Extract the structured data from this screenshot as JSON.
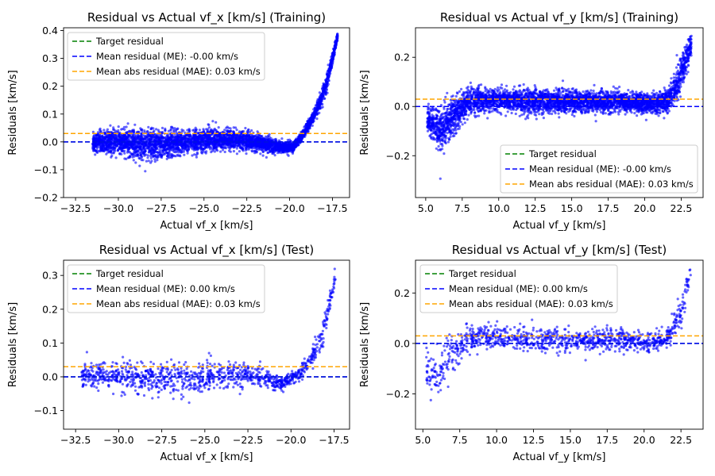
{
  "chart_data": [
    {
      "type": "scatter",
      "title": "Residual vs Actual vf_x [km/s] (Training)",
      "xlabel": "Actual vf_x [km/s]",
      "ylabel": "Residuals [km/s]",
      "xlim": [
        -33.2,
        -16.5
      ],
      "ylim": [
        -0.2,
        0.41
      ],
      "xticks": [
        -32.5,
        -30.0,
        -27.5,
        -25.0,
        -22.5,
        -20.0,
        -17.5
      ],
      "yticks": [
        -0.2,
        -0.1,
        0.0,
        0.1,
        0.2,
        0.3,
        0.4
      ],
      "xtick_labels": [
        "−32.5",
        "−30.0",
        "−27.5",
        "−25.0",
        "−22.5",
        "−20.0",
        "−17.5"
      ],
      "ytick_labels": [
        "−0.2",
        "−0.1",
        "0.0",
        "0.1",
        "0.2",
        "0.3",
        "0.4"
      ],
      "reference_lines": {
        "target": 0.0,
        "mean": 0.0,
        "mae": 0.03
      },
      "legend": {
        "location": "upper-left",
        "entries": [
          "Target residual",
          "Mean residual (ME): -0.00 km/s",
          "Mean abs residual (MAE): 0.03 km/s"
        ]
      },
      "series": [
        {
          "style": "scatter",
          "color": "#0000ff",
          "count": 4200,
          "x_range": [
            -31.5,
            -17.2
          ],
          "profile_x": [
            -31.5,
            -30.0,
            -28.0,
            -26.0,
            -24.0,
            -22.0,
            -20.5,
            -19.8,
            -19.3,
            -18.8,
            -18.3,
            -17.8,
            -17.2
          ],
          "center_y": [
            0.0,
            0.0,
            -0.01,
            0.0,
            0.01,
            0.0,
            -0.02,
            -0.02,
            0.02,
            0.07,
            0.13,
            0.22,
            0.38
          ],
          "spread_y": [
            0.03,
            0.04,
            0.05,
            0.04,
            0.035,
            0.03,
            0.02,
            0.015,
            0.015,
            0.02,
            0.025,
            0.03,
            0.01
          ]
        }
      ]
    },
    {
      "type": "scatter",
      "title": "Residual vs Actual vf_y [km/s] (Training)",
      "xlabel": "Actual vf_y [km/s]",
      "ylabel": "Residuals [km/s]",
      "xlim": [
        4.3,
        24.0
      ],
      "ylim": [
        -0.37,
        0.32
      ],
      "xticks": [
        5.0,
        7.5,
        10.0,
        12.5,
        15.0,
        17.5,
        20.0,
        22.5
      ],
      "yticks": [
        -0.2,
        0.0,
        0.2
      ],
      "xtick_labels": [
        "5.0",
        "7.5",
        "10.0",
        "12.5",
        "15.0",
        "17.5",
        "20.0",
        "22.5"
      ],
      "ytick_labels": [
        "−0.2",
        "0.0",
        "0.2"
      ],
      "reference_lines": {
        "target": 0.0,
        "mean": 0.0,
        "mae": 0.03
      },
      "legend": {
        "location": "lower-right",
        "entries": [
          "Target residual",
          "Mean residual (ME): -0.00 km/s",
          "Mean abs residual (MAE): 0.03 km/s"
        ]
      },
      "series": [
        {
          "style": "scatter",
          "color": "#0000ff",
          "count": 4200,
          "x_range": [
            5.1,
            23.2
          ],
          "profile_x": [
            5.1,
            6.0,
            7.0,
            8.0,
            10.0,
            12.0,
            15.0,
            18.0,
            20.0,
            21.5,
            22.3,
            23.2
          ],
          "center_y": [
            -0.05,
            -0.1,
            -0.03,
            0.02,
            0.03,
            0.02,
            0.02,
            0.02,
            0.01,
            0.02,
            0.1,
            0.25
          ],
          "spread_y": [
            0.04,
            0.08,
            0.07,
            0.05,
            0.04,
            0.045,
            0.04,
            0.04,
            0.035,
            0.04,
            0.07,
            0.04
          ]
        }
      ]
    },
    {
      "type": "scatter",
      "title": "Residual vs Actual vf_x [km/s] (Test)",
      "xlabel": "Actual vf_x [km/s]",
      "ylabel": "Residuals [km/s]",
      "xlim": [
        -33.2,
        -16.6
      ],
      "ylim": [
        -0.155,
        0.345
      ],
      "xticks": [
        -32.5,
        -30.0,
        -27.5,
        -25.0,
        -22.5,
        -20.0,
        -17.5
      ],
      "yticks": [
        -0.1,
        0.0,
        0.1,
        0.2,
        0.3
      ],
      "xtick_labels": [
        "−32.5",
        "−30.0",
        "−27.5",
        "−25.0",
        "−22.5",
        "−20.0",
        "−17.5"
      ],
      "ytick_labels": [
        "−0.1",
        "0.0",
        "0.1",
        "0.2",
        "0.3"
      ],
      "reference_lines": {
        "target": 0.0,
        "mean": 0.0,
        "mae": 0.03
      },
      "legend": {
        "location": "upper-left",
        "entries": [
          "Target residual",
          "Mean residual (ME): 0.00 km/s",
          "Mean abs residual (MAE): 0.03 km/s"
        ]
      },
      "series": [
        {
          "style": "scatter",
          "color": "#0000ff",
          "count": 1100,
          "x_range": [
            -32.2,
            -17.4
          ],
          "profile_x": [
            -32.2,
            -30.0,
            -28.0,
            -26.0,
            -24.0,
            -22.0,
            -20.5,
            -19.5,
            -18.8,
            -18.2,
            -17.4
          ],
          "center_y": [
            0.01,
            0.0,
            0.0,
            -0.01,
            0.01,
            0.0,
            -0.02,
            0.01,
            0.05,
            0.12,
            0.3
          ],
          "spread_y": [
            0.03,
            0.04,
            0.045,
            0.05,
            0.04,
            0.03,
            0.02,
            0.02,
            0.025,
            0.04,
            0.02
          ]
        }
      ]
    },
    {
      "type": "scatter",
      "title": "Residual vs Actual vf_y [km/s] (Test)",
      "xlabel": "Actual vf_y [km/s]",
      "ylabel": "Residuals [km/s]",
      "xlim": [
        4.5,
        24.0
      ],
      "ylim": [
        -0.34,
        0.33
      ],
      "xticks": [
        5.0,
        7.5,
        10.0,
        12.5,
        15.0,
        17.5,
        20.0,
        22.5
      ],
      "yticks": [
        -0.2,
        0.0,
        0.2
      ],
      "xtick_labels": [
        "5.0",
        "7.5",
        "10.0",
        "12.5",
        "15.0",
        "17.5",
        "20.0",
        "22.5"
      ],
      "ytick_labels": [
        "−0.2",
        "0.0",
        "0.2"
      ],
      "reference_lines": {
        "target": 0.0,
        "mean": 0.0,
        "mae": 0.03
      },
      "legend": {
        "location": "upper-left",
        "entries": [
          "Target residual",
          "Mean residual (ME): 0.00 km/s",
          "Mean abs residual (MAE): 0.03 km/s"
        ]
      },
      "series": [
        {
          "style": "scatter",
          "color": "#0000ff",
          "count": 1100,
          "x_range": [
            5.2,
            23.2
          ],
          "profile_x": [
            5.2,
            6.0,
            7.0,
            8.0,
            10.0,
            12.0,
            15.0,
            18.0,
            20.0,
            21.5,
            22.5,
            23.2
          ],
          "center_y": [
            -0.1,
            -0.12,
            -0.05,
            0.02,
            0.03,
            0.02,
            0.01,
            0.02,
            0.0,
            0.02,
            0.12,
            0.3
          ],
          "spread_y": [
            0.08,
            0.1,
            0.08,
            0.05,
            0.04,
            0.045,
            0.04,
            0.04,
            0.035,
            0.04,
            0.07,
            0.02
          ]
        }
      ]
    }
  ],
  "colors": {
    "points": "#0000ff",
    "target_line": "#008000",
    "mean_line": "#0000ff",
    "mae_line": "#ffa500"
  }
}
